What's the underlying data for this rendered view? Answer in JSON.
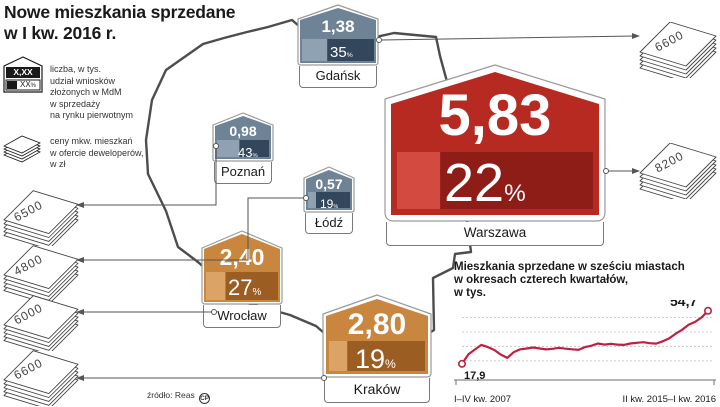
{
  "title": [
    "Nowe mieszkania sprzedane",
    "w I kw. 2016 r."
  ],
  "legend": {
    "sample_value": "X,XX",
    "sample_pct": "XX",
    "sample_pct_sign": "%",
    "house_desc": [
      "liczba, w tys.",
      "udział wniosków",
      "złożonych w MdM",
      "w sprzedaży",
      "na rynku pierwotnym"
    ],
    "stack_desc": [
      "ceny mkw. mieszkań",
      "w ofercie deweloperów,",
      "w zł"
    ]
  },
  "cities": [
    {
      "name": "Gdańsk",
      "value": "1,38",
      "pct": "35",
      "pct_sign": "%",
      "pct_fraction": 0.35,
      "color": "#6f8397",
      "dark": "#33475c",
      "light": "#8fa2b4"
    },
    {
      "name": "Warszawa",
      "value": "5,83",
      "pct": "22",
      "pct_sign": "%",
      "pct_fraction": 0.22,
      "color": "#b62a22",
      "dark": "#8e1c17",
      "light": "#d24a40"
    },
    {
      "name": "Poznań",
      "value": "0,98",
      "pct": "43",
      "pct_sign": "%",
      "pct_fraction": 0.43,
      "color": "#6f8397",
      "dark": "#33475c",
      "light": "#8fa2b4"
    },
    {
      "name": "Łódź",
      "value": "0,57",
      "pct": "19",
      "pct_sign": "%",
      "pct_fraction": 0.19,
      "color": "#6f8397",
      "dark": "#33475c",
      "light": "#8fa2b4"
    },
    {
      "name": "Wrocław",
      "value": "2,40",
      "pct": "27",
      "pct_sign": "%",
      "pct_fraction": 0.27,
      "color": "#c8863f",
      "dark": "#9b5d22",
      "light": "#dba466"
    },
    {
      "name": "Kraków",
      "value": "2,80",
      "pct": "19",
      "pct_sign": "%",
      "pct_fraction": 0.19,
      "color": "#c8863f",
      "dark": "#9b5d22",
      "light": "#dba466"
    }
  ],
  "prices": [
    {
      "city": "Gdańsk",
      "label": "6600"
    },
    {
      "city": "Warszawa",
      "label": "8200"
    },
    {
      "city": "Poznań",
      "label": "6500"
    },
    {
      "city": "Łódź",
      "label": "4800"
    },
    {
      "city": "Wrocław",
      "label": "6000"
    },
    {
      "city": "Kraków",
      "label": "6600"
    }
  ],
  "source": "źródło: Reas",
  "credit_mark": "CP",
  "chart_data": {
    "type": "line",
    "title": "Mieszkania sprzedane w sześciu miastach w okresach czterech kwartałów, w tys.",
    "title_lines": [
      "Mieszkania sprzedane w sześciu miastach",
      "w okresach czterech kwartałów,",
      "w tys."
    ],
    "x_start_label": "I–IV kw. 2007",
    "x_end_label": "II kw. 2015–I kw. 2016",
    "first_label": "17,9",
    "last_label": "54,7",
    "xlabel": "",
    "ylabel": "",
    "ylim": [
      15,
      58
    ],
    "grid": true,
    "line_color": "#c0203f",
    "series": [
      {
        "values": [
          17.9,
          24.5,
          27.8,
          31.0,
          29.5,
          27.5,
          24.3,
          22.0,
          26.0,
          28.0,
          28.5,
          29.2,
          28.5,
          27.9,
          28.3,
          29.0,
          28.4,
          28.0,
          27.6,
          29.5,
          30.5,
          32.0,
          31.2,
          31.8,
          31.2,
          31.0,
          32.0,
          32.5,
          32.9,
          32.2,
          31.9,
          33.5,
          35.5,
          38.8,
          41.5,
          45.0,
          47.0,
          50.0,
          54.7
        ]
      }
    ]
  }
}
